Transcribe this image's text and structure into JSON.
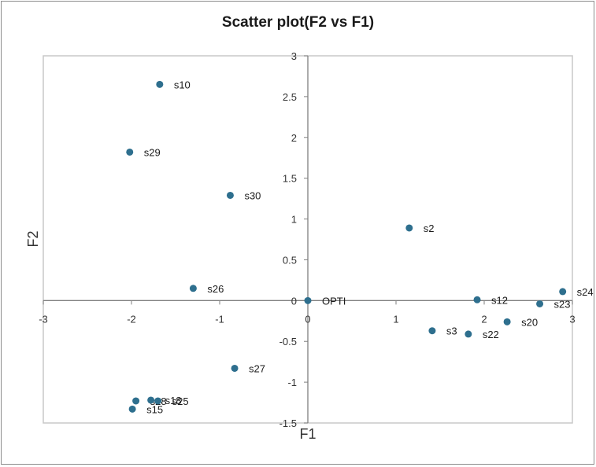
{
  "chart_data": {
    "type": "scatter",
    "title": "Scatter plot(F2 vs F1)",
    "xlabel": "F1",
    "ylabel": "F2",
    "xlim": [
      -3,
      3
    ],
    "ylim": [
      -1.5,
      3
    ],
    "xticks": [
      "-3",
      "-2",
      "-1",
      "0",
      "1",
      "2",
      "3"
    ],
    "yticks": [
      "-1.5",
      "-1",
      "-0.5",
      "0",
      "0.5",
      "1",
      "1.5",
      "2",
      "2.5",
      "3"
    ],
    "grid": false,
    "legend": "none",
    "marker_color": "#2e6f8e",
    "points": [
      {
        "label": "s10",
        "x": -1.68,
        "y": 2.65
      },
      {
        "label": "s29",
        "x": -2.02,
        "y": 1.82
      },
      {
        "label": "s30",
        "x": -0.88,
        "y": 1.29
      },
      {
        "label": "s2",
        "x": 1.15,
        "y": 0.89
      },
      {
        "label": "s26",
        "x": -1.3,
        "y": 0.15
      },
      {
        "label": "OPTI",
        "x": 0.0,
        "y": 0.0
      },
      {
        "label": "s12",
        "x": 1.92,
        "y": 0.01
      },
      {
        "label": "s24",
        "x": 2.89,
        "y": 0.11
      },
      {
        "label": "s23",
        "x": 2.63,
        "y": -0.04
      },
      {
        "label": "s20",
        "x": 2.26,
        "y": -0.26
      },
      {
        "label": "s3",
        "x": 1.41,
        "y": -0.37
      },
      {
        "label": "s22",
        "x": 1.82,
        "y": -0.41
      },
      {
        "label": "s27",
        "x": -0.83,
        "y": -0.83
      },
      {
        "label": "s28",
        "x": -1.95,
        "y": -1.23
      },
      {
        "label": "s18",
        "x": -1.78,
        "y": -1.22
      },
      {
        "label": "s25",
        "x": -1.7,
        "y": -1.23
      },
      {
        "label": "s15",
        "x": -1.99,
        "y": -1.33
      }
    ]
  }
}
